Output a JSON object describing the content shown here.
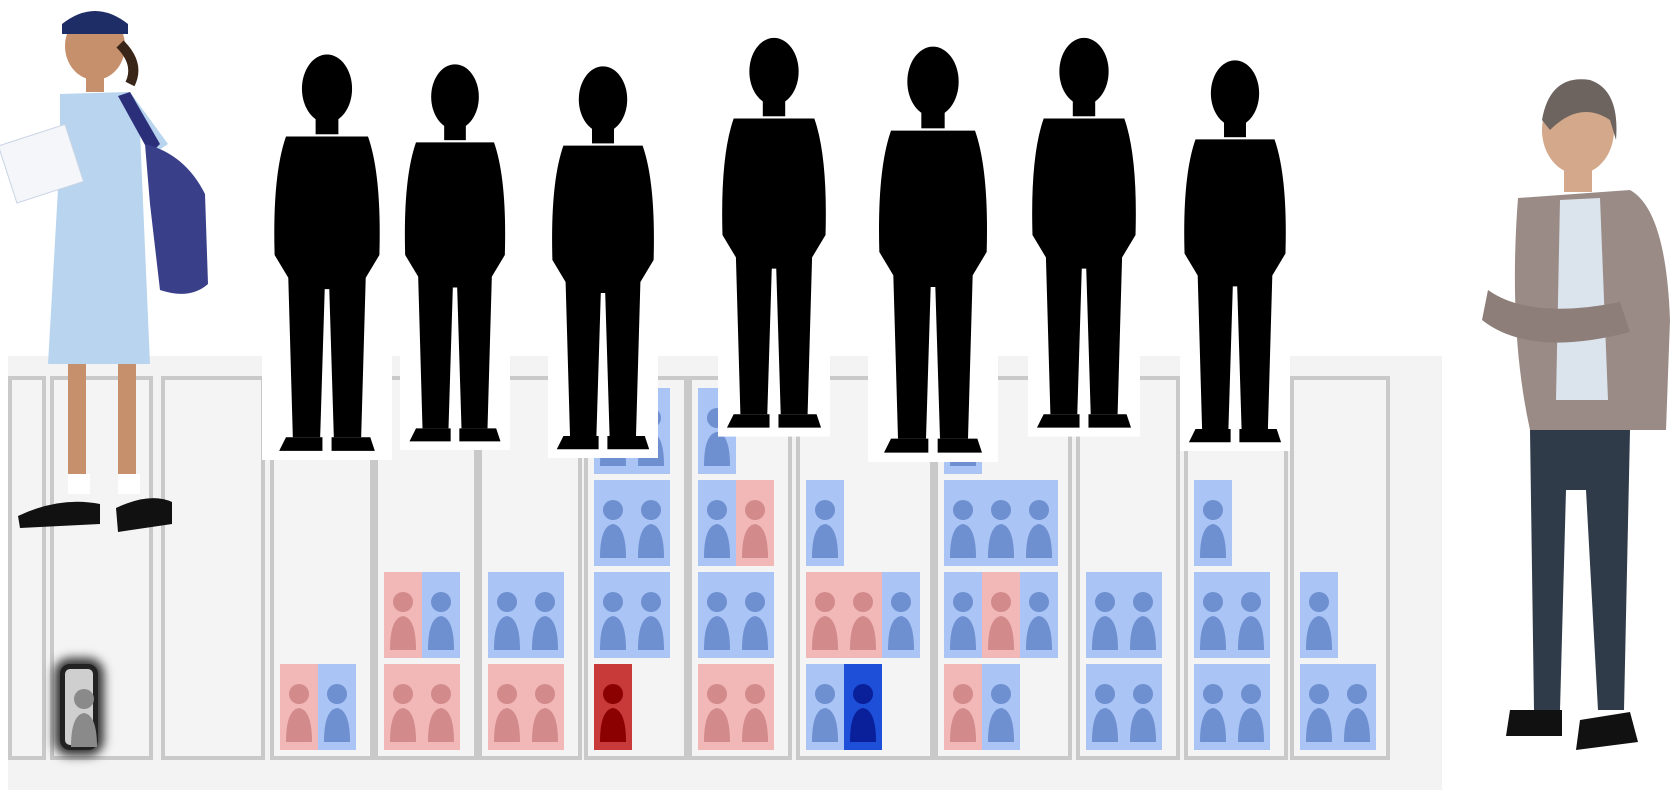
{
  "colors": {
    "board_background": "#f3f3f3",
    "column_border": "#c9c9c9",
    "girl_tile": "#f2b8b8",
    "girl_icon": "#d28a8a",
    "boy_tile": "#a9c4f5",
    "boy_icon": "#6e8fd0",
    "selected_girl_tile": "#c83a3a",
    "selected_girl_icon": "#8b0000",
    "selected_boy_tile": "#1e4fd8",
    "selected_boy_icon": "#0a1f9a",
    "held_tile": "#cfcfcf",
    "silhouette": "#000000"
  },
  "people": {
    "left_student": "schoolgirl-with-backpack",
    "right_teacher": "teacher-arms-crossed",
    "silhouettes": [
      "student-silhouette",
      "student-silhouette",
      "student-silhouette",
      "student-silhouette",
      "student-silhouette",
      "student-silhouette",
      "student-silhouette"
    ]
  },
  "columns": [
    {
      "name": "column-1",
      "tiles": []
    },
    {
      "name": "column-2",
      "tiles": [
        [
          "held"
        ]
      ]
    },
    {
      "name": "column-3",
      "tiles": []
    },
    {
      "name": "column-4",
      "tiles": [
        [
          "girl",
          "boy"
        ]
      ]
    },
    {
      "name": "column-5",
      "tiles": [
        [
          "girl",
          "girl"
        ],
        [
          "girl",
          "boy"
        ]
      ]
    },
    {
      "name": "column-6",
      "tiles": [
        [
          "girl",
          "girl"
        ],
        [
          "boy",
          "boy"
        ]
      ]
    },
    {
      "name": "column-7",
      "tiles": [
        [
          "selected-girl",
          ""
        ],
        [
          "boy",
          "boy"
        ],
        [
          "boy",
          "boy"
        ],
        [
          "boy",
          "boy"
        ]
      ]
    },
    {
      "name": "column-8",
      "tiles": [
        [
          "girl",
          "girl"
        ],
        [
          "boy",
          "boy"
        ],
        [
          "boy",
          "girl"
        ],
        [
          "boy",
          ""
        ]
      ]
    },
    {
      "name": "column-9",
      "tiles": [
        [
          "boy",
          "selected-boy"
        ],
        [
          "girl",
          "girl",
          "boy"
        ],
        [
          "boy",
          ""
        ]
      ]
    },
    {
      "name": "column-10",
      "tiles": [
        [
          "girl",
          "boy"
        ],
        [
          "boy",
          "girl",
          "boy"
        ],
        [
          "boy",
          "boy",
          "boy"
        ],
        [
          "boy",
          ""
        ]
      ]
    },
    {
      "name": "column-11",
      "tiles": [
        [
          "boy",
          "boy"
        ],
        [
          "boy",
          "boy"
        ]
      ]
    },
    {
      "name": "column-12",
      "tiles": [
        [
          "boy",
          "boy"
        ],
        [
          "boy",
          "boy"
        ],
        [
          "boy",
          ""
        ]
      ]
    },
    {
      "name": "column-13",
      "tiles": [
        [
          "boy",
          "boy"
        ],
        [
          "boy",
          ""
        ]
      ]
    }
  ]
}
